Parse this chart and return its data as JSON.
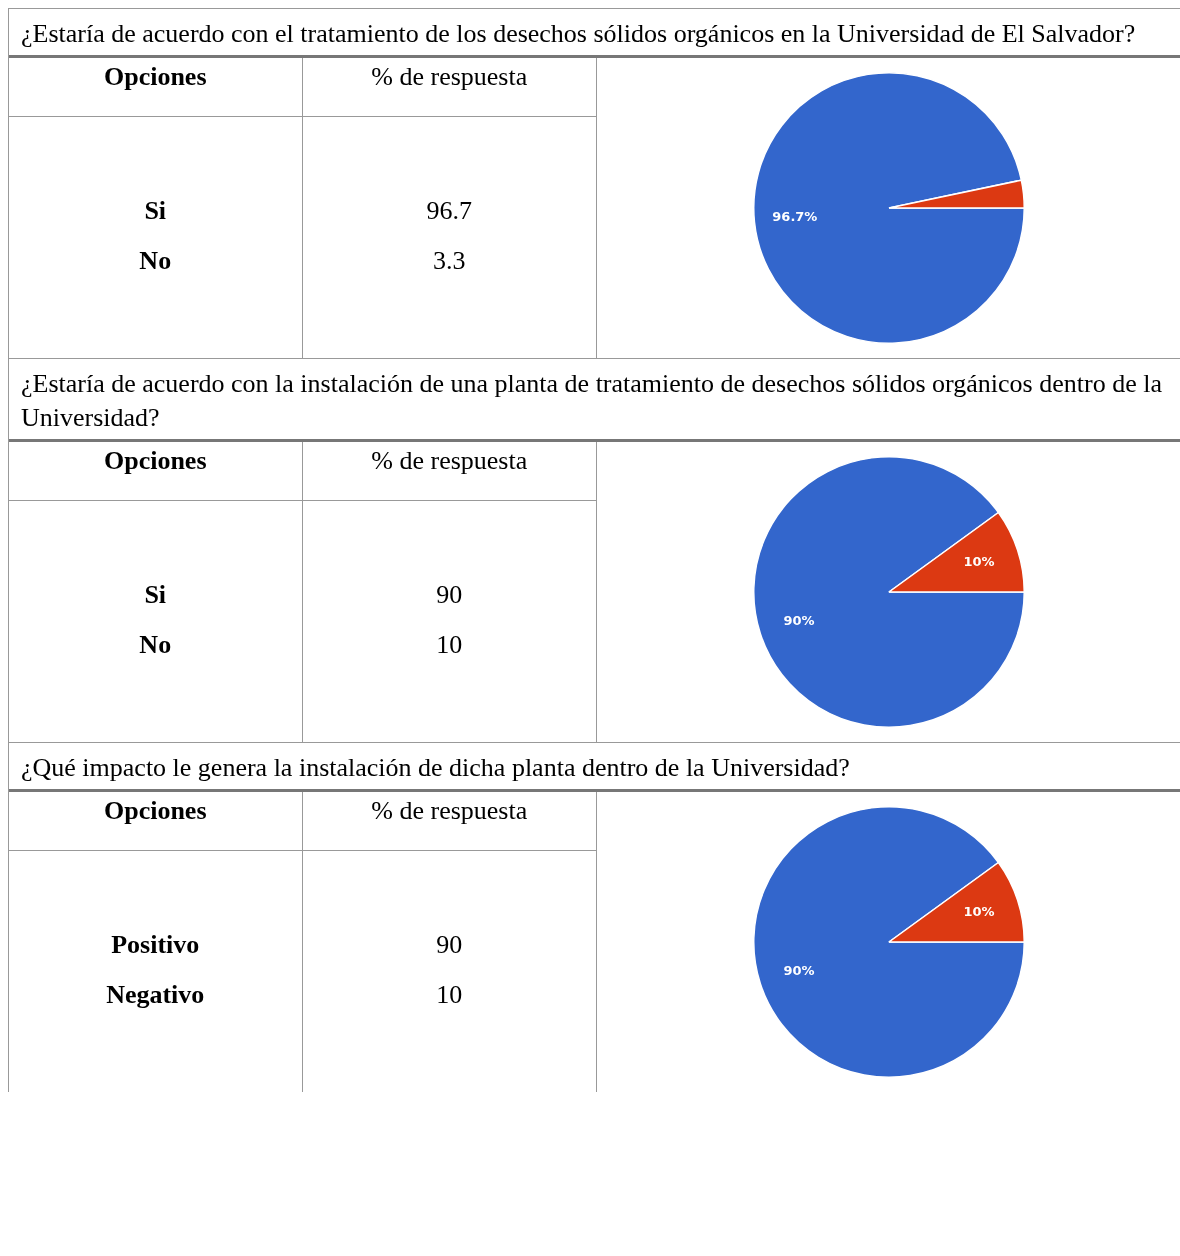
{
  "chart_data": [
    {
      "type": "other",
      "title": "¿Estaría de acuerdo con el tratamiento de los desechos sólidos orgánicos en la Universidad de El Salvador?",
      "xlabel": "Opciones",
      "ylabel": "% de respuesta",
      "categories": [
        "Si",
        "No"
      ],
      "values": [
        96.7,
        3.3
      ],
      "data_labels": true
    },
    {
      "type": "pie",
      "categories": [
        null,
        null
      ],
      "values": [
        96.7,
        3.3
      ],
      "colors": [
        "#3366cc",
        "#dc3912"
      ],
      "value_labels": [
        "96.7%",
        null
      ]
    },
    {
      "type": "other",
      "title": "¿Estaría de acuerdo con la instalación de una planta de tratamiento de desechos sólidos orgánicos dentro de la Universidad?",
      "xlabel": "Opciones",
      "ylabel": "% de respuesta",
      "categories": [
        "Si",
        "No"
      ],
      "values": [
        90,
        10
      ],
      "data_labels": true
    },
    {
      "type": "pie",
      "categories": [
        null,
        null
      ],
      "values": [
        90,
        10
      ],
      "colors": [
        "#3366cc",
        "#dc3912"
      ],
      "value_labels": [
        "90%",
        "10%"
      ]
    },
    {
      "type": "other",
      "title": "¿Qué impacto le genera la instalación de dicha planta dentro de la Universidad?",
      "xlabel": "Opciones",
      "ylabel": "% de respuesta",
      "categories": [
        "Positivo",
        "Negativo"
      ],
      "values": [
        90,
        10
      ],
      "data_labels": true
    },
    {
      "type": "pie",
      "categories": [
        null,
        null
      ],
      "values": [
        90,
        10
      ],
      "colors": [
        "#3366cc",
        "#dc3912"
      ],
      "value_labels": [
        "90%",
        "10%"
      ]
    }
  ]
}
